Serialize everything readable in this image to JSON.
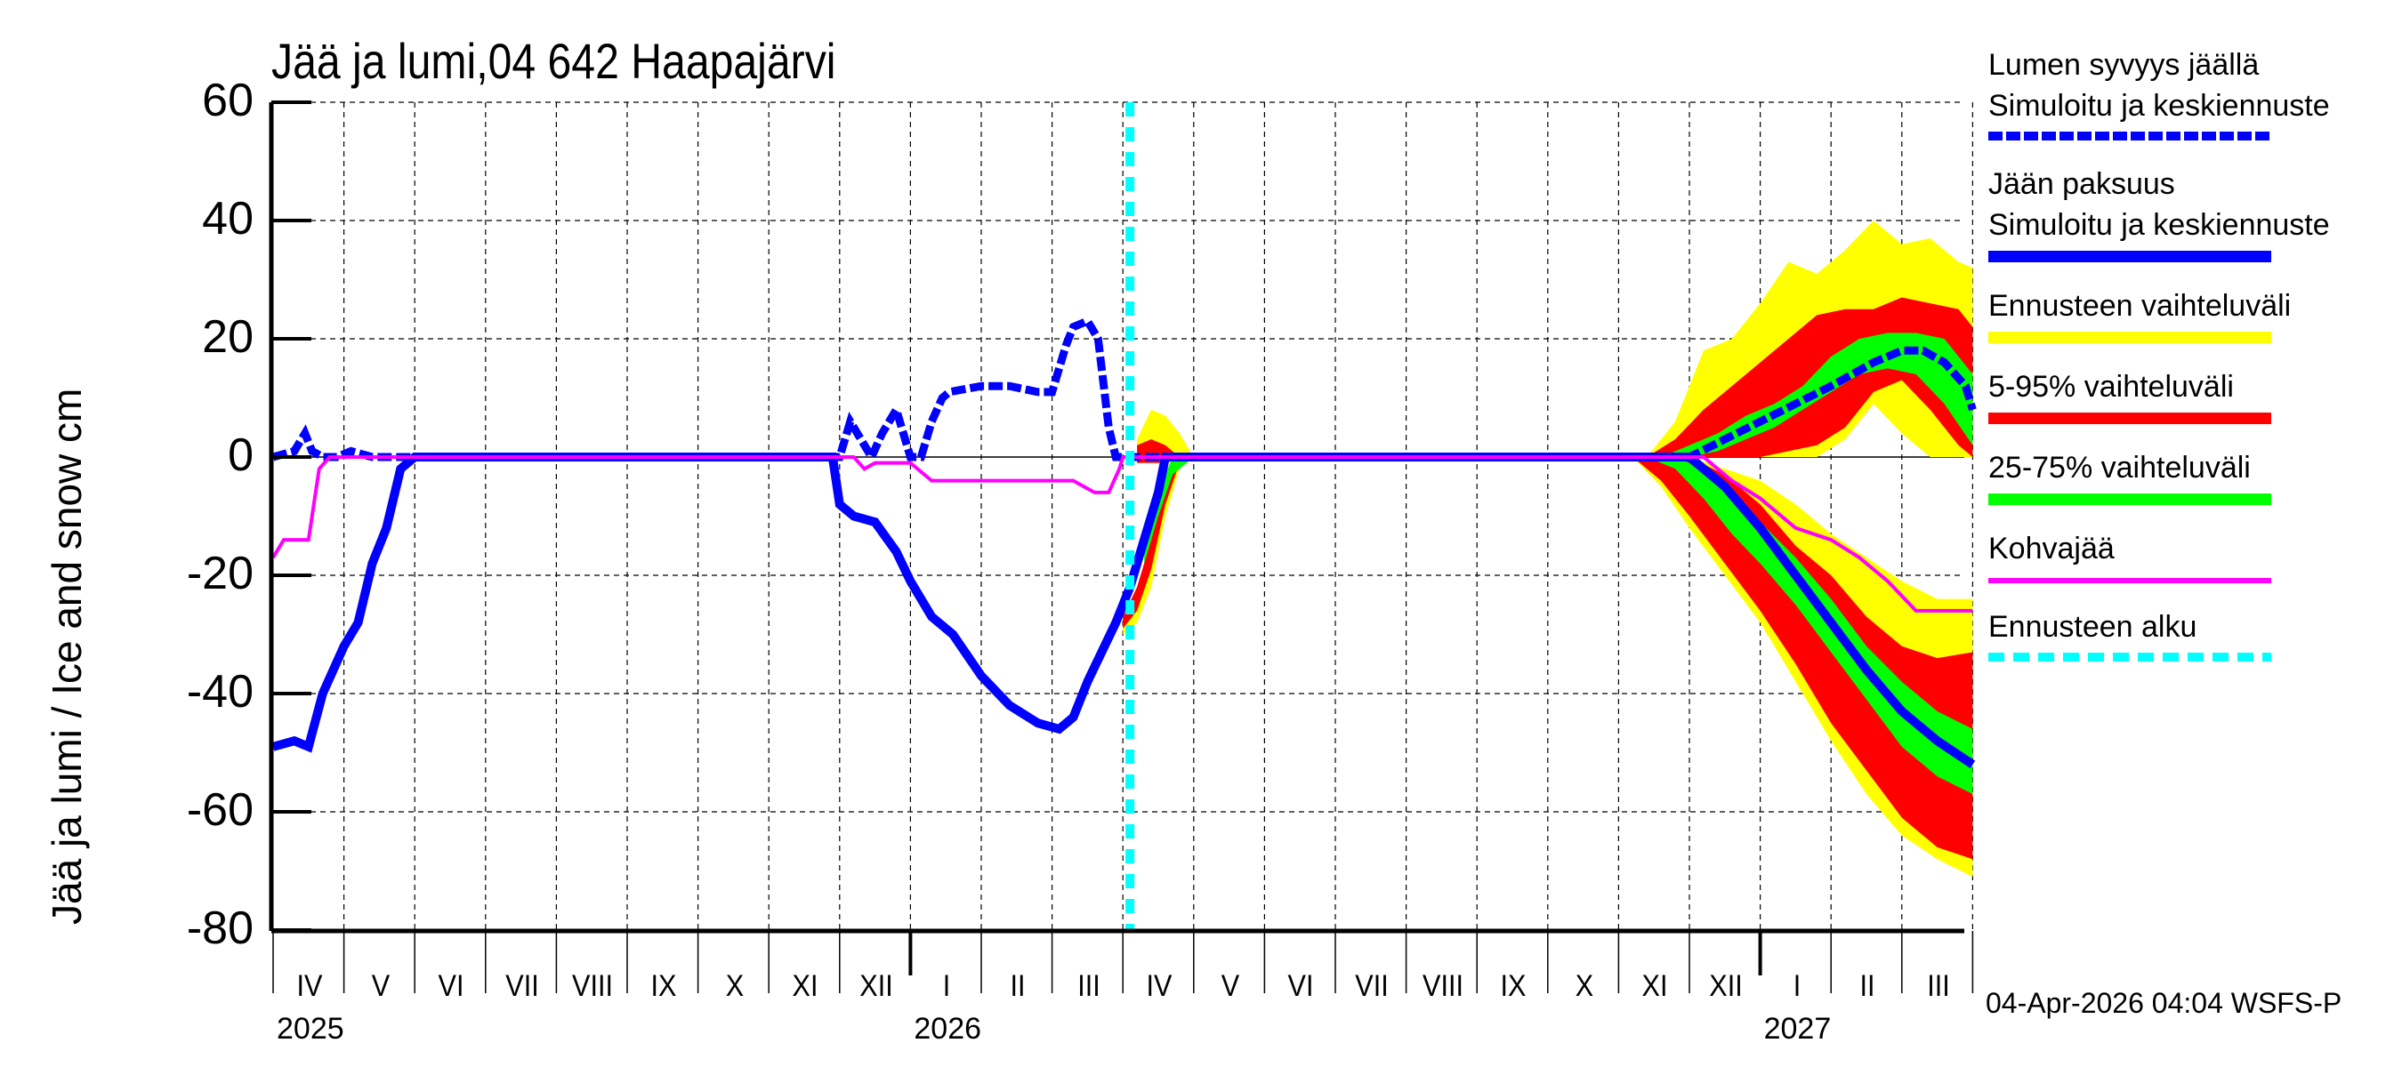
{
  "title": "Jää ja lumi,04 642 Haapajärvi",
  "y_axis_label": "Jää ja lumi / Ice and snow    cm",
  "timestamp": "04-Apr-2026 04:04 WSFS-P",
  "colors": {
    "snow": "#0000ff",
    "ice": "#0000ff",
    "range_full": "#ffff00",
    "range_5_95": "#ff0000",
    "range_25_75": "#00ff00",
    "slush": "#ff00ff",
    "forecast_start": "#00ffff"
  },
  "legend": [
    {
      "line1": "Lumen syvyys jäällä",
      "line2": "Simuloitu ja keskiennuste",
      "style": "dashed-blue"
    },
    {
      "line1": "Jään paksuus",
      "line2": "Simuloitu ja keskiennuste",
      "style": "solid-blue"
    },
    {
      "line1": "Ennusteen vaihteluväli",
      "line2": "",
      "style": "yellow"
    },
    {
      "line1": "5-95% vaihteluväli",
      "line2": "",
      "style": "red"
    },
    {
      "line1": "25-75% vaihteluväli",
      "line2": "",
      "style": "green"
    },
    {
      "line1": "Kohvajää",
      "line2": "",
      "style": "magenta"
    },
    {
      "line1": "Ennusteen alku",
      "line2": "",
      "style": "cyan"
    }
  ],
  "x_axis": {
    "months": [
      "IV",
      "V",
      "VI",
      "VII",
      "VIII",
      "IX",
      "X",
      "XI",
      "XII",
      "I",
      "II",
      "III",
      "IV",
      "V",
      "VI",
      "VII",
      "VIII",
      "IX",
      "X",
      "XI",
      "XII",
      "I",
      "II",
      "III"
    ],
    "years": [
      {
        "label": "2025",
        "month_index": 0
      },
      {
        "label": "2026",
        "month_index": 9
      },
      {
        "label": "2027",
        "month_index": 21
      }
    ]
  },
  "y_axis": {
    "ticks": [
      "60",
      "40",
      "20",
      "0",
      "-20",
      "-40",
      "-60",
      "-80"
    ]
  },
  "chart_data": {
    "type": "line",
    "title": "Jää ja lumi,04 642 Haapajärvi",
    "xlabel": "",
    "ylabel": "Jää ja lumi / Ice and snow cm",
    "ylim": [
      -80,
      60
    ],
    "xlim": [
      "2025-04-01",
      "2027-04-01"
    ],
    "grid": true,
    "legend_position": "right",
    "forecast_start": "2026-04-04",
    "x_unit": "months since 2025-04-01",
    "series": [
      {
        "name": "Lumen syvyys jäällä (snow depth, simulated & median forecast)",
        "style": "dashed",
        "x": [
          0,
          0.3,
          0.45,
          0.55,
          0.7,
          0.9,
          1.1,
          1.4,
          2,
          4,
          7,
          8.0,
          8.15,
          8.3,
          8.45,
          8.6,
          8.8,
          9.0,
          9.15,
          9.3,
          9.45,
          9.55,
          10.0,
          10.4,
          10.8,
          11.0,
          11.2,
          11.3,
          11.5,
          11.65,
          11.8,
          11.9,
          12.0,
          12.5,
          16,
          19,
          20.0,
          20.5,
          21.0,
          21.5,
          22.0,
          22.6,
          23.0,
          23.3,
          23.6,
          23.9,
          24.0
        ],
        "y": [
          0,
          1,
          4,
          1,
          0,
          0,
          1,
          0,
          0,
          0,
          0,
          0,
          6,
          3,
          0,
          4,
          8,
          0,
          0,
          6,
          10,
          11,
          12,
          12,
          11,
          11,
          19,
          22,
          23,
          20,
          5,
          0,
          0,
          0,
          0,
          0,
          0,
          3,
          6,
          9,
          12,
          16,
          18,
          18,
          16,
          12,
          8
        ]
      },
      {
        "name": "Jään paksuus (ice thickness, simulated & median forecast)",
        "style": "solid",
        "x": [
          0,
          0.3,
          0.5,
          0.7,
          1.0,
          1.2,
          1.4,
          1.6,
          1.8,
          2.0,
          4,
          7,
          7.9,
          8.0,
          8.2,
          8.5,
          8.8,
          9.0,
          9.3,
          9.6,
          10.0,
          10.4,
          10.8,
          11.1,
          11.3,
          11.5,
          11.7,
          11.9,
          12.1,
          12.3,
          12.5,
          12.6,
          13,
          16,
          19,
          20.0,
          20.5,
          21.0,
          21.5,
          22.0,
          22.5,
          23.0,
          23.5,
          24.0
        ],
        "y": [
          -49,
          -48,
          -49,
          -40,
          -32,
          -28,
          -18,
          -12,
          -2,
          0,
          0,
          0,
          0,
          -8,
          -10,
          -11,
          -16,
          -21,
          -27,
          -30,
          -37,
          -42,
          -45,
          -46,
          -44,
          -38,
          -33,
          -28,
          -22,
          -14,
          -6,
          0,
          0,
          0,
          0,
          0,
          -5,
          -12,
          -20,
          -28,
          -36,
          -43,
          -48,
          -52
        ]
      },
      {
        "name": "Kohvajää (slush ice)",
        "style": "solid",
        "x": [
          0,
          0.15,
          0.5,
          0.65,
          0.8,
          2,
          7,
          8.2,
          8.35,
          8.5,
          9.0,
          9.3,
          10,
          11.0,
          11.3,
          11.6,
          11.8,
          11.95,
          12,
          16,
          19,
          20.2,
          20.6,
          21.0,
          21.5,
          22.0,
          22.4,
          22.8,
          23.2,
          23.5,
          24.0
        ],
        "y": [
          -17,
          -14,
          -14,
          -2,
          0,
          0,
          0,
          0,
          -2,
          -1,
          -1,
          -4,
          -4,
          -4,
          -4,
          -6,
          -6,
          -2,
          0,
          0,
          0,
          0,
          -4,
          -7,
          -12,
          -14,
          -17,
          -21,
          -26,
          -26,
          -26
        ]
      },
      {
        "name": "Ennusteen vaihteluväli (full range, snow)",
        "style": "band",
        "x": [
          12.2,
          12.4,
          12.6,
          12.8,
          13.0,
          19.4,
          19.8,
          20.2,
          20.6,
          21.0,
          21.4,
          21.8,
          22.2,
          22.6,
          23.0,
          23.4,
          23.8,
          24.0
        ],
        "upper": [
          3,
          8,
          7,
          4,
          0,
          0,
          6,
          18,
          20,
          26,
          33,
          31,
          35,
          40,
          36,
          37,
          33,
          32
        ],
        "lower": [
          -1,
          -1,
          -1,
          -1,
          0,
          0,
          0,
          0,
          0,
          0,
          0,
          0,
          3,
          9,
          4,
          0,
          0,
          0
        ]
      },
      {
        "name": "5-95% vaihteluväli (snow)",
        "style": "band",
        "x": [
          12.2,
          12.4,
          12.6,
          12.8,
          13.0,
          19.4,
          19.8,
          20.2,
          20.6,
          21.0,
          21.4,
          21.8,
          22.2,
          22.6,
          23.0,
          23.4,
          23.8,
          24.0
        ],
        "upper": [
          2,
          3,
          2,
          0,
          0,
          0,
          3,
          8,
          12,
          16,
          20,
          24,
          25,
          25,
          27,
          26,
          25,
          22
        ],
        "lower": [
          -1,
          -1,
          -1,
          0,
          0,
          0,
          0,
          0,
          0,
          0,
          1,
          2,
          5,
          11,
          13,
          8,
          2,
          0
        ]
      },
      {
        "name": "25-75% vaihteluväli (snow)",
        "style": "band",
        "x": [
          19.6,
          20.0,
          20.4,
          20.8,
          21.2,
          21.6,
          22.0,
          22.4,
          22.8,
          23.2,
          23.6,
          24.0
        ],
        "upper": [
          0,
          2,
          4,
          7,
          9,
          12,
          17,
          20,
          21,
          21,
          20,
          14
        ],
        "lower": [
          0,
          0,
          1,
          3,
          5,
          8,
          11,
          14,
          15,
          14,
          9,
          2
        ]
      },
      {
        "name": "Ennusteen vaihteluväli (full range, ice)",
        "style": "band",
        "x": [
          12.0,
          12.2,
          12.4,
          12.6,
          12.8,
          13.0,
          19.2,
          19.6,
          20.0,
          20.5,
          21.0,
          21.5,
          22.0,
          22.5,
          23.0,
          23.5,
          24.0
        ],
        "upper": [
          -28,
          -24,
          -14,
          -4,
          0,
          0,
          0,
          0,
          0,
          -2,
          -4,
          -8,
          -13,
          -17,
          -21,
          -24,
          -24
        ],
        "lower": [
          -30,
          -28,
          -22,
          -10,
          -2,
          0,
          0,
          -5,
          -12,
          -20,
          -28,
          -38,
          -48,
          -57,
          -64,
          -68,
          -71
        ]
      },
      {
        "name": "5-95% vaihteluväli (ice)",
        "style": "band",
        "x": [
          12.0,
          12.2,
          12.4,
          12.6,
          12.8,
          13.0,
          19.2,
          19.6,
          20.0,
          20.5,
          21.0,
          21.5,
          22.0,
          22.5,
          23.0,
          23.5,
          24.0
        ],
        "upper": [
          -27,
          -22,
          -14,
          -3,
          0,
          0,
          0,
          0,
          0,
          -3,
          -8,
          -15,
          -20,
          -27,
          -32,
          -34,
          -33
        ],
        "lower": [
          -29,
          -26,
          -19,
          -8,
          -1,
          0,
          0,
          -4,
          -10,
          -18,
          -26,
          -35,
          -45,
          -53,
          -61,
          -66,
          -68
        ]
      },
      {
        "name": "25-75% vaihteluväli (ice)",
        "style": "band",
        "x": [
          12.3,
          12.5,
          12.7,
          13.0,
          19.4,
          19.8,
          20.2,
          20.6,
          21.0,
          21.5,
          22.0,
          22.5,
          23.0,
          23.5,
          24.0
        ],
        "upper": [
          -12,
          -6,
          0,
          0,
          0,
          0,
          -2,
          -6,
          -11,
          -17,
          -24,
          -32,
          -38,
          -43,
          -46
        ],
        "lower": [
          -18,
          -10,
          -3,
          0,
          0,
          -2,
          -7,
          -13,
          -18,
          -25,
          -33,
          -41,
          -49,
          -54,
          -57
        ]
      }
    ]
  }
}
